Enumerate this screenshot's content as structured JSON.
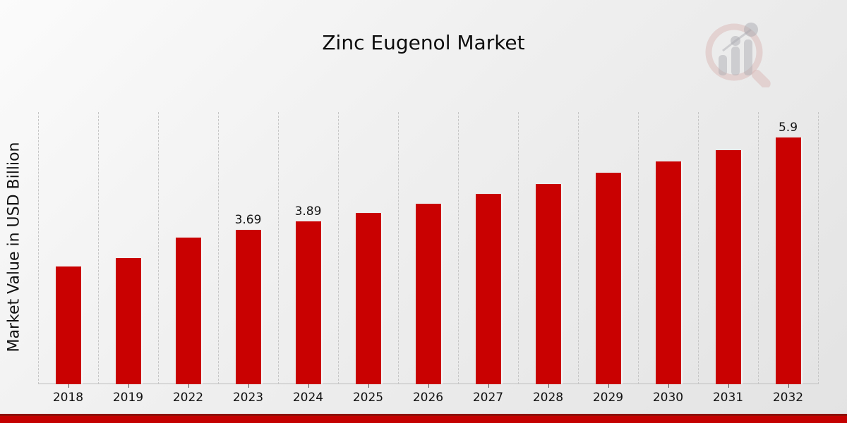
{
  "title": "Zinc Eugenol Market",
  "ylabel": "Market Value in USD Billion",
  "logo_icon": "magnifier-bar-chart-icon",
  "colors": {
    "bar": "#c90101",
    "grid": "#c6c6c6",
    "axis_line": "#bdbdbd",
    "bottom_band": "#c40000",
    "bottom_band_edge": "#8e1006",
    "text": "#111111",
    "watermark_pink": "#d9b8b6",
    "watermark_gray": "#a9a9b0"
  },
  "chart_data": {
    "type": "bar",
    "title": "Zinc Eugenol Market",
    "xlabel": "",
    "ylabel": "Market Value in USD Billion",
    "categories": [
      "2018",
      "2019",
      "2022",
      "2023",
      "2024",
      "2025",
      "2026",
      "2027",
      "2028",
      "2029",
      "2030",
      "2031",
      "2032"
    ],
    "values": [
      2.81,
      3.01,
      3.5,
      3.69,
      3.89,
      4.1,
      4.32,
      4.55,
      4.79,
      5.05,
      5.32,
      5.6,
      5.9
    ],
    "data_labels": {
      "2023": "3.69",
      "2024": "3.89",
      "2032": "5.9"
    },
    "ylim": [
      0,
      6.57
    ],
    "grid": "vertical-dashed-category-boundaries",
    "legend": "none",
    "bar_color": "#c90101"
  }
}
